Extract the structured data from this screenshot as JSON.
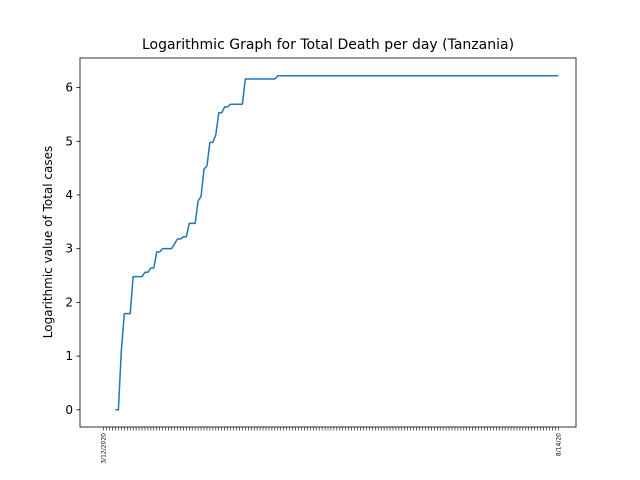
{
  "chart_data": {
    "type": "line",
    "title": "Logarithmic Graph for Total Death per day (Tanzania)",
    "xlabel": "",
    "ylabel": "Logarithmic value of Total cases",
    "ylim": [
      -0.32,
      6.55
    ],
    "yticks": [
      0,
      1,
      2,
      3,
      4,
      5,
      6
    ],
    "grid": false,
    "color": "#1f77b4",
    "x_label_first": "3/12/2020",
    "x_label_last": "8/14/20",
    "x_start_index": 4,
    "y": [
      0,
      0,
      1.1,
      1.79,
      1.79,
      1.79,
      2.48,
      2.48,
      2.48,
      2.48,
      2.56,
      2.56,
      2.64,
      2.64,
      2.94,
      2.94,
      3.0,
      3.0,
      3.0,
      3.0,
      3.09,
      3.18,
      3.18,
      3.22,
      3.22,
      3.47,
      3.47,
      3.47,
      3.89,
      3.97,
      4.48,
      4.54,
      4.98,
      4.98,
      5.12,
      5.53,
      5.53,
      5.64,
      5.64,
      5.69,
      5.69,
      5.69,
      5.69,
      5.69,
      6.16,
      6.16,
      6.16,
      6.16,
      6.16,
      6.16,
      6.16,
      6.16,
      6.16,
      6.16,
      6.16,
      6.22,
      6.22,
      6.22,
      6.22,
      6.22,
      6.22,
      6.22,
      6.22,
      6.22,
      6.22,
      6.22,
      6.22,
      6.22,
      6.22,
      6.22,
      6.22,
      6.22,
      6.22,
      6.22,
      6.22,
      6.22,
      6.22,
      6.22,
      6.22,
      6.22,
      6.22,
      6.22,
      6.22,
      6.22,
      6.22,
      6.22,
      6.22,
      6.22,
      6.22,
      6.22,
      6.22,
      6.22,
      6.22,
      6.22,
      6.22,
      6.22,
      6.22,
      6.22,
      6.22,
      6.22,
      6.22,
      6.22,
      6.22,
      6.22,
      6.22,
      6.22,
      6.22,
      6.22,
      6.22,
      6.22,
      6.22,
      6.22,
      6.22,
      6.22,
      6.22,
      6.22,
      6.22,
      6.22,
      6.22,
      6.22,
      6.22,
      6.22,
      6.22,
      6.22,
      6.22,
      6.22,
      6.22,
      6.22,
      6.22,
      6.22,
      6.22,
      6.22,
      6.22,
      6.22,
      6.22,
      6.22,
      6.22,
      6.22,
      6.22,
      6.22,
      6.22,
      6.22,
      6.22,
      6.22,
      6.22,
      6.22,
      6.22,
      6.22,
      6.22,
      6.22,
      6.22
    ]
  }
}
